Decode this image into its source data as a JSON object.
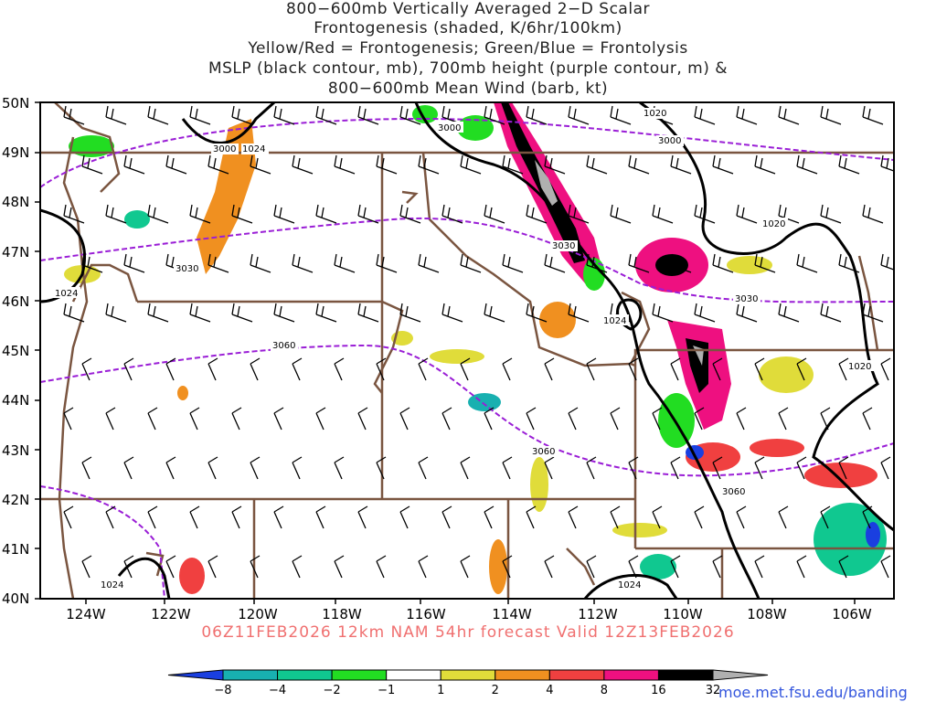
{
  "title_lines": [
    "800−600mb Vertically Averaged 2−D Scalar",
    "Frontogenesis (shaded, K/6hr/100km)",
    "Yellow/Red = Frontogenesis;  Green/Blue = Frontolysis",
    "MSLP (black contour, mb), 700mb height (purple contour, m) &",
    "800−600mb Mean Wind (barb, kt)"
  ],
  "valid_line": "06Z11FEB2026 12km NAM 54hr forecast Valid 12Z13FEB2026",
  "credit": "moe.met.fsu.edu/banding",
  "lat_labels": [
    "50N",
    "49N",
    "48N",
    "47N",
    "46N",
    "45N",
    "44N",
    "43N",
    "42N",
    "41N",
    "40N"
  ],
  "lon_labels": [
    "124W",
    "122W",
    "120W",
    "118W",
    "116W",
    "114W",
    "112W",
    "110W",
    "108W",
    "106W"
  ],
  "colorbar": {
    "labels": [
      "−8",
      "−4",
      "−2",
      "−1",
      "1",
      "2",
      "4",
      "8",
      "16",
      "32"
    ],
    "colors": [
      "#1a3fe0",
      "#18b0b0",
      "#10c890",
      "#22dd22",
      "#ffffff",
      "#e0dc3a",
      "#f09020",
      "#f04040",
      "#ee1080",
      "#000000",
      "#b0b0b0"
    ]
  },
  "contour_labels": {
    "mslp": [
      "1024",
      "1024",
      "1020",
      "1020",
      "1020",
      "1024",
      "1024",
      "1024"
    ],
    "height": [
      "3000",
      "3000",
      "3000",
      "3030",
      "3030",
      "3030",
      "3060",
      "3060",
      "3060"
    ]
  },
  "colors": {
    "mslp": "#000000",
    "height": "#9a1ed6",
    "borders": "#7a5540"
  }
}
